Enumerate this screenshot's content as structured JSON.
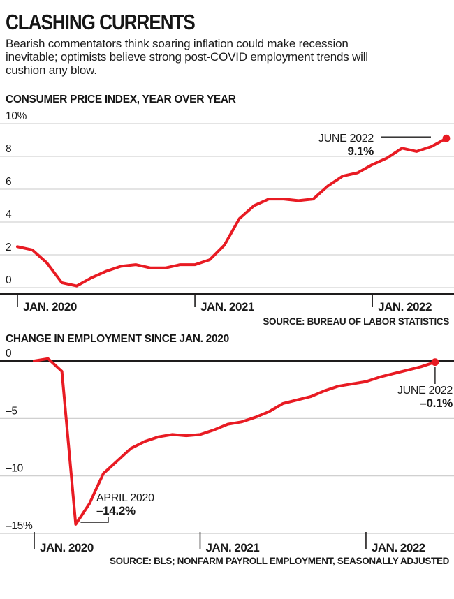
{
  "header": {
    "title": "CLASHING CURRENTS",
    "subtitle_lines": [
      "Bearish commentators think soaring inflation could make recession",
      "inevitable; optimists believe strong post-COVID employment trends will",
      "cushion any blow."
    ]
  },
  "colors": {
    "line_red": "#e81b23",
    "grid_gray": "#c9c9c9",
    "axis_dark": "#1e1c1c",
    "text_dark": "#1a1a1a"
  },
  "chart_data": [
    {
      "type": "line",
      "title": "CONSUMER PRICE INDEX, YEAR OVER YEAR",
      "x_frequency": "monthly",
      "x_start": "Jan 2020",
      "x_end": "June 2022",
      "x_tick_labels": [
        "JAN. 2020",
        "JAN. 2021",
        "JAN. 2022"
      ],
      "x_tick_month_index": [
        0,
        12,
        24
      ],
      "y_ticks": [
        {
          "label": "10%",
          "value": 10
        },
        {
          "label": "8",
          "value": 8
        },
        {
          "label": "6",
          "value": 6
        },
        {
          "label": "4",
          "value": 4
        },
        {
          "label": "2",
          "value": 2
        },
        {
          "label": "0",
          "value": 0
        }
      ],
      "ylim": [
        0,
        10.6
      ],
      "grid": true,
      "legend": false,
      "values": [
        2.5,
        2.3,
        1.5,
        0.3,
        0.1,
        0.6,
        1.0,
        1.3,
        1.4,
        1.2,
        1.2,
        1.4,
        1.4,
        1.7,
        2.6,
        4.2,
        5.0,
        5.4,
        5.4,
        5.3,
        5.4,
        6.2,
        6.8,
        7.0,
        7.5,
        7.9,
        8.5,
        8.3,
        8.6,
        9.1
      ],
      "end_annotation": {
        "label": "JUNE 2022",
        "value_label": "9.1%"
      },
      "source": "SOURCE: BUREAU OF LABOR STATISTICS"
    },
    {
      "type": "line",
      "title": "CHANGE IN EMPLOYMENT SINCE JAN. 2020",
      "x_frequency": "monthly",
      "x_start": "Jan 2020",
      "x_end": "June 2022",
      "x_tick_labels": [
        "JAN. 2020",
        "JAN. 2021",
        "JAN. 2022"
      ],
      "x_tick_month_index": [
        0,
        12,
        24
      ],
      "y_ticks": [
        {
          "label": "0",
          "value": 0
        },
        {
          "label": "–5",
          "value": -5
        },
        {
          "label": "–10",
          "value": -10
        },
        {
          "label": "–15%",
          "value": -15
        }
      ],
      "ylim": [
        -15.5,
        1.4
      ],
      "grid": true,
      "legend": false,
      "values": [
        0,
        0.2,
        -0.9,
        -14.2,
        -12.4,
        -9.8,
        -8.7,
        -7.6,
        -7.0,
        -6.6,
        -6.4,
        -6.5,
        -6.4,
        -6.0,
        -5.5,
        -5.3,
        -4.9,
        -4.4,
        -3.7,
        -3.4,
        -3.1,
        -2.6,
        -2.2,
        -2.0,
        -1.8,
        -1.4,
        -1.1,
        -0.8,
        -0.5,
        -0.1
      ],
      "min_annotation": {
        "label": "APRIL 2020",
        "value_label": "–14.2%",
        "month_index": 3
      },
      "end_annotation": {
        "label": "JUNE 2022",
        "value_label": "–0.1%"
      },
      "source": "SOURCE: BLS; NONFARM PAYROLL EMPLOYMENT, SEASONALLY ADJUSTED"
    }
  ]
}
